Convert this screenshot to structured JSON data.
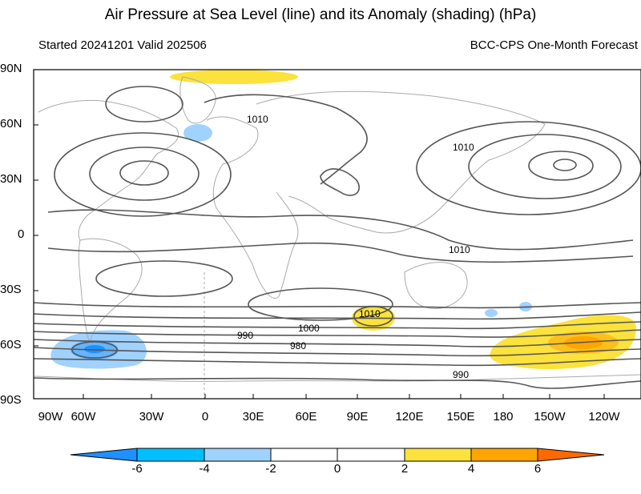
{
  "title": "Air Pressure at Sea Level (line) and its Anomaly (shading) (hPa)",
  "subtitle_left": "Started 20241201  Valid 202506",
  "subtitle_right": "BCC-CPS One-Month Forecast",
  "y_ticks": [
    "90N",
    "60N",
    "30N",
    "0",
    "30S",
    "60S",
    "90S"
  ],
  "x_ticks": [
    "90W",
    "60W",
    "30W",
    "0",
    "30E",
    "60E",
    "90E",
    "120E",
    "150E",
    "180",
    "150W",
    "120W"
  ],
  "contour_labels": [
    "1010",
    "1010",
    "1010",
    "1010",
    "1000",
    "990",
    "980",
    "990"
  ],
  "colorbar": {
    "labels": [
      "-6",
      "-4",
      "-2",
      "0",
      "2",
      "4",
      "6"
    ],
    "colors": [
      "#1e90ff",
      "#00bfff",
      "#a0d2ff",
      "#ffffff",
      "#ffffff",
      "#fbe23c",
      "#ffa500",
      "#ff6a00"
    ]
  },
  "colors": {
    "neg_light": "#a0d2ff",
    "neg_mid": "#64b4ff",
    "neg_strong": "#1e90ff",
    "pos_light": "#fbe23c",
    "pos_mid": "#fcc01c",
    "pos_strong": "#ffa500",
    "contour": "#555555",
    "coast": "#aaaaaa"
  }
}
